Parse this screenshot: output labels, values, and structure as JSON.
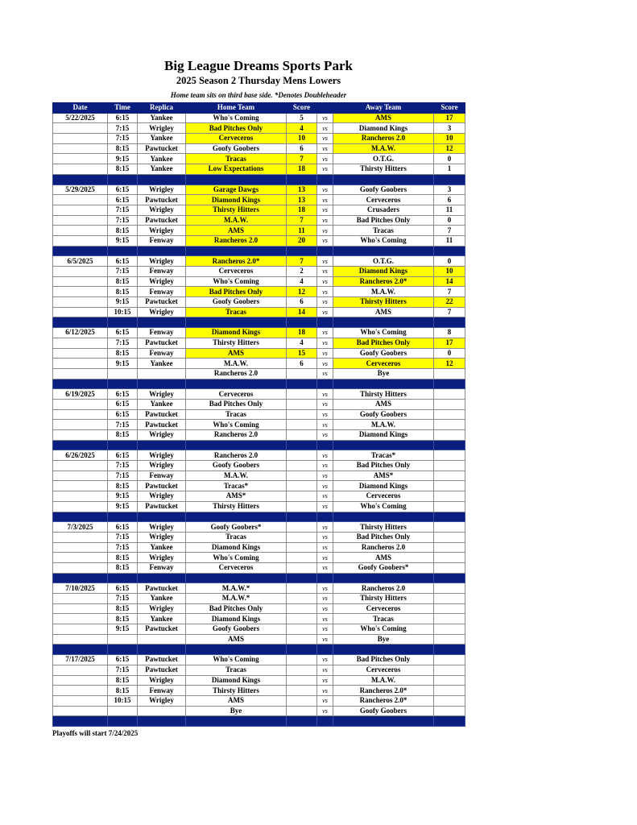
{
  "header": {
    "title": "Big League Dreams Sports Park",
    "subtitle": "2025 Season 2 Thursday Mens Lowers",
    "note": "Home team sits on third base side.  *Denotes Doubleheader"
  },
  "colors": {
    "header_bg": "#0a1e80",
    "winner_highlight": "#ffff00"
  },
  "columns": [
    "Date",
    "Time",
    "Replica",
    "Home Team",
    "Score",
    "",
    "Away Team",
    "Score"
  ],
  "vs_label": "vs",
  "weeks": [
    {
      "date": "5/22/2025",
      "games": [
        {
          "time": "6:15",
          "field": "Yankee",
          "home": "Who's Coming",
          "home_score": "5",
          "away": "AMS",
          "away_score": "17",
          "winner": "away"
        },
        {
          "time": "7:15",
          "field": "Wrigley",
          "home": "Bad Pitches Only",
          "home_score": "4",
          "away": "Diamond Kings",
          "away_score": "3",
          "winner": "home"
        },
        {
          "time": "7:15",
          "field": "Yankee",
          "home": "Cerveceros",
          "home_score": "10",
          "away": "Rancheros 2.0",
          "away_score": "10",
          "winner": "tie"
        },
        {
          "time": "8:15",
          "field": "Pawtucket",
          "home": "Goofy Goobers",
          "home_score": "6",
          "away": "M.A.W.",
          "away_score": "12",
          "winner": "away"
        },
        {
          "time": "9:15",
          "field": "Yankee",
          "home": "Tracas",
          "home_score": "7",
          "away": "O.T.G.",
          "away_score": "0",
          "winner": "home"
        },
        {
          "time": "8:15",
          "field": "Yankee",
          "home": "Low Expectations",
          "home_score": "18",
          "away": "Thirsty Hitters",
          "away_score": "1",
          "winner": "home"
        }
      ]
    },
    {
      "date": "5/29/2025",
      "games": [
        {
          "time": "6:15",
          "field": "Wrigley",
          "home": "Garage Dawgs",
          "home_score": "13",
          "away": "Goofy Goobers",
          "away_score": "3",
          "winner": "home"
        },
        {
          "time": "6:15",
          "field": "Pawtucket",
          "home": "Diamond Kings",
          "home_score": "13",
          "away": "Cerveceros",
          "away_score": "6",
          "winner": "home"
        },
        {
          "time": "7:15",
          "field": "Wrigley",
          "home": "Thirsty Hitters",
          "home_score": "18",
          "away": "Crusaders",
          "away_score": "11",
          "winner": "home"
        },
        {
          "time": "7:15",
          "field": "Pawtucket",
          "home": "M.A.W.",
          "home_score": "7",
          "away": "Bad Pitches Only",
          "away_score": "0",
          "winner": "home"
        },
        {
          "time": "8:15",
          "field": "Wrigley",
          "home": "AMS",
          "home_score": "11",
          "away": "Tracas",
          "away_score": "7",
          "winner": "home"
        },
        {
          "time": "9:15",
          "field": "Fenway",
          "home": "Rancheros 2.0",
          "home_score": "20",
          "away": "Who's Coming",
          "away_score": "11",
          "winner": "home"
        }
      ]
    },
    {
      "date": "6/5/2025",
      "games": [
        {
          "time": "6:15",
          "field": "Wrigley",
          "home": "Rancheros 2.0*",
          "home_score": "7",
          "away": "O.T.G.",
          "away_score": "0",
          "winner": "home"
        },
        {
          "time": "7:15",
          "field": "Fenway",
          "home": "Cerveceros",
          "home_score": "2",
          "away": "Diamond Kings",
          "away_score": "10",
          "winner": "away"
        },
        {
          "time": "8:15",
          "field": "Wrigley",
          "home": "Who's Coming",
          "home_score": "4",
          "away": "Rancheros 2.0*",
          "away_score": "14",
          "winner": "away"
        },
        {
          "time": "8:15",
          "field": "Fenway",
          "home": "Bad Pitches Only",
          "home_score": "12",
          "away": "M.A.W.",
          "away_score": "7",
          "winner": "home"
        },
        {
          "time": "9:15",
          "field": "Pawtucket",
          "home": "Goofy Goobers",
          "home_score": "6",
          "away": "Thirsty Hitters",
          "away_score": "22",
          "winner": "away"
        },
        {
          "time": "10:15",
          "field": "Wrigley",
          "home": "Tracas",
          "home_score": "14",
          "away": "AMS",
          "away_score": "7",
          "winner": "home"
        }
      ]
    },
    {
      "date": "6/12/2025",
      "games": [
        {
          "time": "6:15",
          "field": "Fenway",
          "home": "Diamond Kings",
          "home_score": "18",
          "away": "Who's Coming",
          "away_score": "8",
          "winner": "home"
        },
        {
          "time": "7:15",
          "field": "Pawtucket",
          "home": "Thirsty Hitters",
          "home_score": "4",
          "away": "Bad Pitches Only",
          "away_score": "17",
          "winner": "away"
        },
        {
          "time": "8:15",
          "field": "Fenway",
          "home": "AMS",
          "home_score": "15",
          "away": "Goofy Goobers",
          "away_score": "0",
          "winner": "home"
        },
        {
          "time": "9:15",
          "field": "Yankee",
          "home": "M.A.W.",
          "home_score": "6",
          "away": "Cerveceros",
          "away_score": "12",
          "winner": "away"
        },
        {
          "time": "",
          "field": "",
          "home": "Rancheros 2.0",
          "home_score": "",
          "away": "Bye",
          "away_score": "",
          "winner": ""
        }
      ]
    },
    {
      "date": "6/19/2025",
      "games": [
        {
          "time": "6:15",
          "field": "Wrigley",
          "home": "Cerveceros",
          "home_score": "",
          "away": "Thirsty Hitters",
          "away_score": "",
          "winner": ""
        },
        {
          "time": "6:15",
          "field": "Yankee",
          "home": "Bad Pitches Only",
          "home_score": "",
          "away": "AMS",
          "away_score": "",
          "winner": ""
        },
        {
          "time": "6:15",
          "field": "Pawtucket",
          "home": "Tracas",
          "home_score": "",
          "away": "Goofy Goobers",
          "away_score": "",
          "winner": ""
        },
        {
          "time": "7:15",
          "field": "Pawtucket",
          "home": "Who's Coming",
          "home_score": "",
          "away": "M.A.W.",
          "away_score": "",
          "winner": ""
        },
        {
          "time": "8:15",
          "field": "Wrigley",
          "home": "Rancheros 2.0",
          "home_score": "",
          "away": "Diamond Kings",
          "away_score": "",
          "winner": ""
        }
      ]
    },
    {
      "date": "6/26/2025",
      "games": [
        {
          "time": "6:15",
          "field": "Wrigley",
          "home": "Rancheros 2.0",
          "home_score": "",
          "away": "Tracas*",
          "away_score": "",
          "winner": ""
        },
        {
          "time": "7:15",
          "field": "Wrigley",
          "home": "Goofy Goobers",
          "home_score": "",
          "away": "Bad Pitches Only",
          "away_score": "",
          "winner": ""
        },
        {
          "time": "7:15",
          "field": "Fenway",
          "home": "M.A.W.",
          "home_score": "",
          "away": "AMS*",
          "away_score": "",
          "winner": ""
        },
        {
          "time": "8:15",
          "field": "Pawtucket",
          "home": "Tracas*",
          "home_score": "",
          "away": "Diamond Kings",
          "away_score": "",
          "winner": ""
        },
        {
          "time": "9:15",
          "field": "Wrigley",
          "home": "AMS*",
          "home_score": "",
          "away": "Cerveceros",
          "away_score": "",
          "winner": ""
        },
        {
          "time": "9:15",
          "field": "Pawtucket",
          "home": "Thirsty Hitters",
          "home_score": "",
          "away": "Who's Coming",
          "away_score": "",
          "winner": ""
        }
      ]
    },
    {
      "date": "7/3/2025",
      "games": [
        {
          "time": "6:15",
          "field": "Wrigley",
          "home": "Goofy Goobers*",
          "home_score": "",
          "away": "Thirsty Hitters",
          "away_score": "",
          "winner": ""
        },
        {
          "time": "7:15",
          "field": "Wrigley",
          "home": "Tracas",
          "home_score": "",
          "away": "Bad Pitches Only",
          "away_score": "",
          "winner": ""
        },
        {
          "time": "7:15",
          "field": "Yankee",
          "home": "Diamond Kings",
          "home_score": "",
          "away": "Rancheros 2.0",
          "away_score": "",
          "winner": ""
        },
        {
          "time": "8:15",
          "field": "Wrigley",
          "home": "Who's Coming",
          "home_score": "",
          "away": "AMS",
          "away_score": "",
          "winner": ""
        },
        {
          "time": "8:15",
          "field": "Fenway",
          "home": "Cerveceros",
          "home_score": "",
          "away": "Goofy Goobers*",
          "away_score": "",
          "winner": ""
        }
      ]
    },
    {
      "date": "7/10/2025",
      "games": [
        {
          "time": "6:15",
          "field": "Pawtucket",
          "home": "M.A.W.*",
          "home_score": "",
          "away": "Rancheros 2.0",
          "away_score": "",
          "winner": ""
        },
        {
          "time": "7:15",
          "field": "Yankee",
          "home": "M.A.W.*",
          "home_score": "",
          "away": "Thirsty Hitters",
          "away_score": "",
          "winner": ""
        },
        {
          "time": "8:15",
          "field": "Wrigley",
          "home": "Bad Pitches Only",
          "home_score": "",
          "away": "Cerveceros",
          "away_score": "",
          "winner": ""
        },
        {
          "time": "8:15",
          "field": "Yankee",
          "home": "Diamond Kings",
          "home_score": "",
          "away": "Tracas",
          "away_score": "",
          "winner": ""
        },
        {
          "time": "9:15",
          "field": "Pawtucket",
          "home": "Goofy Goobers",
          "home_score": "",
          "away": "Who's Coming",
          "away_score": "",
          "winner": ""
        },
        {
          "time": "",
          "field": "",
          "home": "AMS",
          "home_score": "",
          "away": "Bye",
          "away_score": "",
          "winner": ""
        }
      ]
    },
    {
      "date": "7/17/2025",
      "games": [
        {
          "time": "6:15",
          "field": "Pawtucket",
          "home": "Who's Coming",
          "home_score": "",
          "away": "Bad Pitches Only",
          "away_score": "",
          "winner": ""
        },
        {
          "time": "7:15",
          "field": "Pawtucket",
          "home": "Tracas",
          "home_score": "",
          "away": "Cerveceros",
          "away_score": "",
          "winner": ""
        },
        {
          "time": "8:15",
          "field": "Wrigley",
          "home": "Diamond Kings",
          "home_score": "",
          "away": "M.A.W.",
          "away_score": "",
          "winner": ""
        },
        {
          "time": "8:15",
          "field": "Fenway",
          "home": "Thirsty Hitters",
          "home_score": "",
          "away": "Rancheros 2.0*",
          "away_score": "",
          "winner": ""
        },
        {
          "time": "10:15",
          "field": "Wrigley",
          "home": "AMS",
          "home_score": "",
          "away": "Rancheros 2.0*",
          "away_score": "",
          "winner": ""
        },
        {
          "time": "",
          "field": "",
          "home": "Bye",
          "home_score": "",
          "away": "Goofy Goobers",
          "away_score": "",
          "winner": ""
        }
      ]
    }
  ],
  "footer": "Playoffs will start 7/24/2025"
}
